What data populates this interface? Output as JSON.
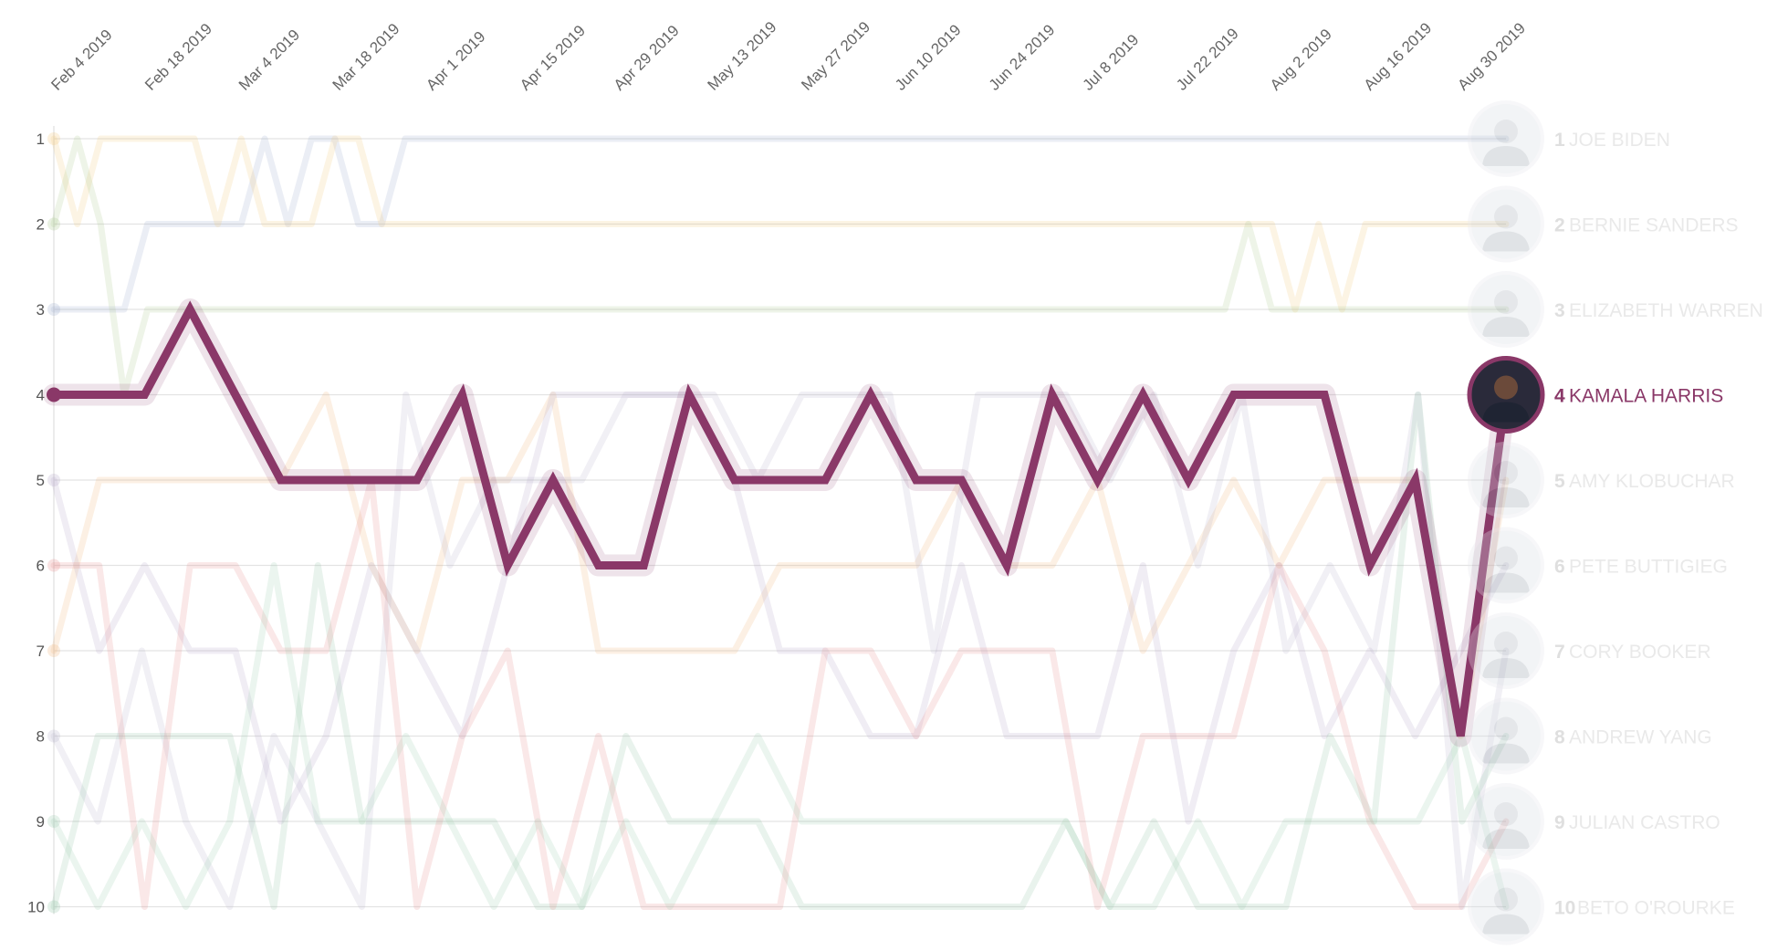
{
  "chart_data": {
    "type": "line",
    "title": "",
    "xlabel": "",
    "ylabel": "",
    "x_tick_labels": [
      "Feb 4 2019",
      "Feb 18 2019",
      "Mar 4 2019",
      "Mar 18 2019",
      "Apr 1 2019",
      "Apr 15 2019",
      "Apr 29 2019",
      "May 13 2019",
      "May 27 2019",
      "Jun 10 2019",
      "Jun 24 2019",
      "Jul 8 2019",
      "Jul 22 2019",
      "Aug 2 2019",
      "Aug 16 2019",
      "Aug 30 2019"
    ],
    "y_ticks": [
      1,
      2,
      3,
      4,
      5,
      6,
      7,
      8,
      9,
      10
    ],
    "y_reversed": true,
    "highlighted_series": "KAMALA HARRIS",
    "series": [
      {
        "name": "JOE BIDEN",
        "rank": 1,
        "color": "#9aaccc",
        "values": [
          3,
          3,
          3,
          3,
          2,
          2,
          2,
          2,
          2,
          1,
          2,
          1,
          1,
          2,
          2,
          1,
          1,
          1,
          1,
          1,
          1,
          1,
          1,
          1,
          1,
          1,
          1,
          1,
          1,
          1,
          1,
          1,
          1,
          1,
          1,
          1,
          1,
          1,
          1,
          1,
          1,
          1,
          1,
          1,
          1,
          1,
          1,
          1,
          1,
          1,
          1,
          1,
          1,
          1,
          1,
          1,
          1,
          1,
          1,
          1,
          1,
          1,
          1
        ]
      },
      {
        "name": "BERNIE SANDERS",
        "rank": 2,
        "color": "#f2c77a",
        "values": [
          1,
          2,
          1,
          1,
          1,
          1,
          1,
          2,
          1,
          2,
          2,
          2,
          1,
          1,
          2,
          2,
          2,
          2,
          2,
          2,
          2,
          2,
          2,
          2,
          2,
          2,
          2,
          2,
          2,
          2,
          2,
          2,
          2,
          2,
          2,
          2,
          2,
          2,
          2,
          2,
          2,
          2,
          2,
          2,
          2,
          2,
          2,
          2,
          2,
          2,
          2,
          2,
          2,
          3,
          2,
          3,
          2,
          2,
          2,
          2,
          2,
          2,
          2
        ]
      },
      {
        "name": "ELIZABETH WARREN",
        "rank": 3,
        "color": "#a9c98a",
        "values": [
          2,
          1,
          2,
          4,
          3,
          3,
          3,
          3,
          3,
          3,
          3,
          3,
          3,
          3,
          3,
          3,
          3,
          3,
          3,
          3,
          3,
          3,
          3,
          3,
          3,
          3,
          3,
          3,
          3,
          3,
          3,
          3,
          3,
          3,
          3,
          3,
          3,
          3,
          3,
          3,
          3,
          3,
          3,
          3,
          3,
          3,
          3,
          3,
          3,
          3,
          3,
          2,
          3,
          3,
          3,
          3,
          3,
          3,
          3,
          3,
          3,
          3,
          3
        ]
      },
      {
        "name": "KAMALA HARRIS",
        "rank": 4,
        "color": "#8a3868",
        "values": [
          4,
          4,
          4,
          3,
          4,
          5,
          5,
          5,
          5,
          4,
          6,
          5,
          6,
          6,
          4,
          5,
          5,
          5,
          4,
          5,
          5,
          6,
          4,
          5,
          4,
          5,
          4,
          4,
          4,
          6,
          5,
          8,
          4
        ]
      },
      {
        "name": "AMY KLOBUCHAR",
        "rank": 5,
        "color": "#f0b27a",
        "values": [
          7,
          5,
          5,
          5,
          5,
          5,
          4,
          6,
          7,
          5,
          5,
          4,
          7,
          7,
          7,
          7,
          6,
          6,
          6,
          6,
          5,
          6,
          6,
          5,
          7,
          6,
          5,
          6,
          5,
          5,
          5,
          8,
          5
        ]
      },
      {
        "name": "PETE BUTTIGIEG",
        "rank": 6,
        "color": "#b2a6c8",
        "values": [
          5,
          7,
          6,
          7,
          7,
          9,
          8,
          6,
          7,
          8,
          6,
          4,
          4,
          4,
          4,
          5,
          7,
          7,
          8,
          8,
          6,
          8,
          8,
          8,
          6,
          9,
          7,
          6,
          8,
          7,
          8,
          7,
          6
        ]
      },
      {
        "name": "CORY BOOKER",
        "rank": 7,
        "color": "#b8b2cc",
        "values": [
          8,
          9,
          7,
          9,
          10,
          8,
          9,
          10,
          4,
          6,
          5,
          5,
          5,
          4,
          4,
          4,
          5,
          4,
          4,
          4,
          7,
          4,
          4,
          4,
          5,
          4,
          6,
          4,
          7,
          6,
          7,
          4,
          10,
          7
        ]
      },
      {
        "name": "ANDREW YANG",
        "rank": 8,
        "color": "#8fc4a4",
        "values": [
          10,
          8,
          8,
          8,
          8,
          10,
          6,
          9,
          9,
          9,
          9,
          10,
          10,
          8,
          9,
          9,
          9,
          10,
          10,
          10,
          10,
          10,
          10,
          9,
          10,
          9,
          10,
          10,
          10,
          8,
          9,
          4,
          9,
          8
        ]
      },
      {
        "name": "JULIAN CASTRO",
        "rank": 9,
        "color": "#e88a8a",
        "values": [
          6,
          6,
          10,
          6,
          6,
          7,
          7,
          5,
          10,
          8,
          7,
          10,
          8,
          10,
          10,
          10,
          10,
          7,
          7,
          8,
          7,
          7,
          7,
          10,
          8,
          8,
          8,
          6,
          7,
          9,
          10,
          10,
          9
        ]
      },
      {
        "name": "BETO O'ROURKE",
        "rank": 10,
        "color": "#9ccdb0",
        "values": [
          9,
          10,
          9,
          10,
          9,
          6,
          9,
          9,
          8,
          9,
          10,
          9,
          10,
          9,
          10,
          9,
          8,
          9,
          9,
          9,
          9,
          9,
          9,
          9,
          10,
          10,
          9,
          10,
          9,
          9,
          9,
          9,
          8,
          10
        ]
      }
    ]
  }
}
